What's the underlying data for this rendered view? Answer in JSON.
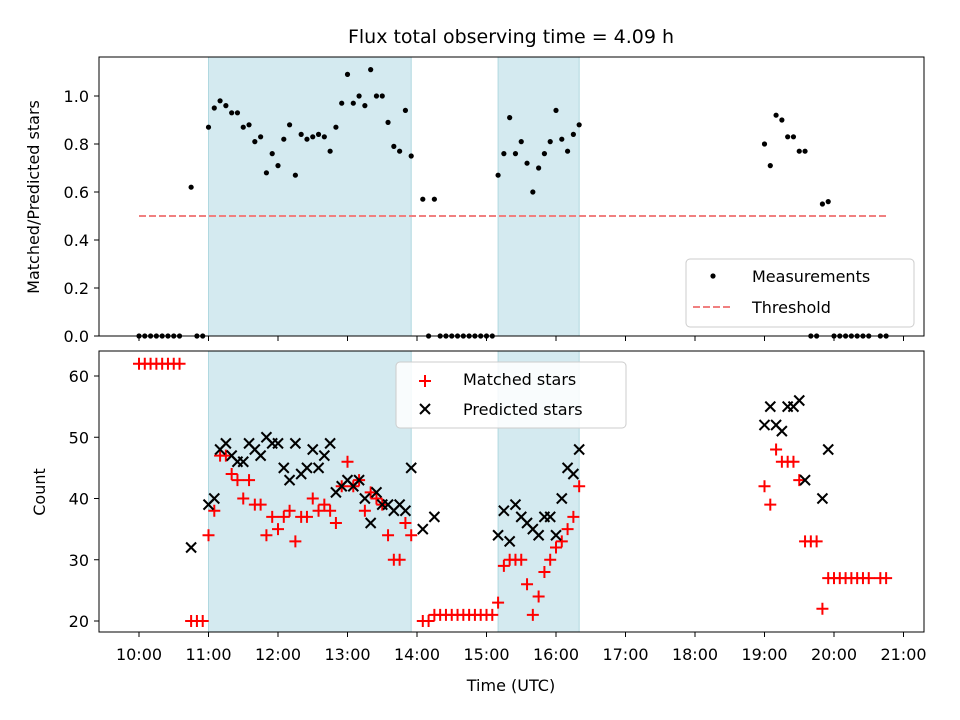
{
  "chart_data": [
    {
      "type": "scatter",
      "title": "Flux total observing time = 4.09 h",
      "xlabel": "",
      "ylabel": "Matched/Predicted stars",
      "xlim": [
        "09:50",
        "21:15"
      ],
      "ylim": [
        0,
        1.17
      ],
      "yticks": [
        "0.0",
        "0.2",
        "0.4",
        "0.6",
        "0.8",
        "1.0"
      ],
      "grid": false,
      "legend_position": "lower-right",
      "shaded_intervals": [
        [
          "11:00",
          "13:55"
        ],
        [
          "15:10",
          "16:20"
        ]
      ],
      "shade_color": "#d4eaf0",
      "series": [
        {
          "name": "Measurements",
          "marker": "dot",
          "color": "#000000",
          "points": [
            [
              "10:00",
              0
            ],
            [
              "10:05",
              0
            ],
            [
              "10:10",
              0
            ],
            [
              "10:15",
              0
            ],
            [
              "10:20",
              0
            ],
            [
              "10:25",
              0
            ],
            [
              "10:30",
              0
            ],
            [
              "10:35",
              0
            ],
            [
              "10:45",
              0.62
            ],
            [
              "10:50",
              0
            ],
            [
              "10:55",
              0
            ],
            [
              "11:00",
              0.87
            ],
            [
              "11:05",
              0.95
            ],
            [
              "11:10",
              0.98
            ],
            [
              "11:15",
              0.96
            ],
            [
              "11:20",
              0.93
            ],
            [
              "11:25",
              0.93
            ],
            [
              "11:30",
              0.87
            ],
            [
              "11:35",
              0.88
            ],
            [
              "11:40",
              0.81
            ],
            [
              "11:45",
              0.83
            ],
            [
              "11:50",
              0.68
            ],
            [
              "11:55",
              0.76
            ],
            [
              "12:00",
              0.71
            ],
            [
              "12:05",
              0.82
            ],
            [
              "12:10",
              0.88
            ],
            [
              "12:15",
              0.67
            ],
            [
              "12:20",
              0.84
            ],
            [
              "12:25",
              0.82
            ],
            [
              "12:30",
              0.83
            ],
            [
              "12:35",
              0.84
            ],
            [
              "12:40",
              0.83
            ],
            [
              "12:45",
              0.77
            ],
            [
              "12:50",
              0.87
            ],
            [
              "12:55",
              0.97
            ],
            [
              "13:00",
              1.09
            ],
            [
              "13:05",
              0.97
            ],
            [
              "13:10",
              1.0
            ],
            [
              "13:15",
              0.96
            ],
            [
              "13:20",
              1.11
            ],
            [
              "13:25",
              1.0
            ],
            [
              "13:30",
              1.0
            ],
            [
              "13:35",
              0.89
            ],
            [
              "13:40",
              0.79
            ],
            [
              "13:45",
              0.77
            ],
            [
              "13:50",
              0.94
            ],
            [
              "13:55",
              0.75
            ],
            [
              "14:05",
              0.57
            ],
            [
              "14:10",
              0
            ],
            [
              "14:15",
              0.57
            ],
            [
              "14:20",
              0
            ],
            [
              "14:25",
              0
            ],
            [
              "14:30",
              0
            ],
            [
              "14:35",
              0
            ],
            [
              "14:40",
              0
            ],
            [
              "14:45",
              0
            ],
            [
              "14:50",
              0
            ],
            [
              "14:55",
              0
            ],
            [
              "15:00",
              0
            ],
            [
              "15:05",
              0
            ],
            [
              "15:10",
              0.67
            ],
            [
              "15:15",
              0.76
            ],
            [
              "15:20",
              0.91
            ],
            [
              "15:25",
              0.76
            ],
            [
              "15:30",
              0.81
            ],
            [
              "15:35",
              0.72
            ],
            [
              "15:40",
              0.6
            ],
            [
              "15:45",
              0.7
            ],
            [
              "15:50",
              0.76
            ],
            [
              "15:55",
              0.81
            ],
            [
              "16:00",
              0.94
            ],
            [
              "16:05",
              0.82
            ],
            [
              "16:10",
              0.77
            ],
            [
              "16:15",
              0.84
            ],
            [
              "16:20",
              0.88
            ],
            [
              "19:00",
              0.8
            ],
            [
              "19:05",
              0.71
            ],
            [
              "19:10",
              0.92
            ],
            [
              "19:15",
              0.9
            ],
            [
              "19:20",
              0.83
            ],
            [
              "19:25",
              0.83
            ],
            [
              "19:30",
              0.77
            ],
            [
              "19:35",
              0.77
            ],
            [
              "19:40",
              0
            ],
            [
              "19:45",
              0
            ],
            [
              "19:50",
              0.55
            ],
            [
              "19:55",
              0.56
            ],
            [
              "20:00",
              0
            ],
            [
              "20:05",
              0
            ],
            [
              "20:10",
              0
            ],
            [
              "20:15",
              0
            ],
            [
              "20:20",
              0
            ],
            [
              "20:25",
              0
            ],
            [
              "20:30",
              0
            ],
            [
              "20:40",
              0
            ],
            [
              "20:45",
              0
            ]
          ]
        },
        {
          "name": "Threshold",
          "marker": "dashed-line",
          "color": "#f08080",
          "points": [
            [
              "10:00",
              0.5
            ],
            [
              "20:45",
              0.5
            ]
          ]
        }
      ]
    },
    {
      "type": "scatter",
      "title": "",
      "xlabel": "Time (UTC)",
      "ylabel": "Count",
      "xlim": [
        "09:50",
        "21:15"
      ],
      "ylim": [
        18,
        64
      ],
      "yticks": [
        "20",
        "30",
        "40",
        "50",
        "60"
      ],
      "xticks": [
        "10:00",
        "11:00",
        "12:00",
        "13:00",
        "14:00",
        "15:00",
        "16:00",
        "17:00",
        "18:00",
        "19:00",
        "20:00",
        "21:00"
      ],
      "grid": false,
      "legend_position": "upper-center",
      "shaded_intervals": [
        [
          "11:00",
          "13:55"
        ],
        [
          "15:10",
          "16:20"
        ]
      ],
      "shade_color": "#d4eaf0",
      "series": [
        {
          "name": "Matched stars",
          "marker": "plus",
          "color": "#ff0000",
          "points": [
            [
              "10:00",
              62
            ],
            [
              "10:05",
              62
            ],
            [
              "10:10",
              62
            ],
            [
              "10:15",
              62
            ],
            [
              "10:20",
              62
            ],
            [
              "10:25",
              62
            ],
            [
              "10:30",
              62
            ],
            [
              "10:35",
              62
            ],
            [
              "10:45",
              20
            ],
            [
              "10:50",
              20
            ],
            [
              "10:55",
              20
            ],
            [
              "11:00",
              34
            ],
            [
              "11:05",
              38
            ],
            [
              "11:10",
              47
            ],
            [
              "11:15",
              47
            ],
            [
              "11:20",
              44
            ],
            [
              "11:25",
              43
            ],
            [
              "11:30",
              40
            ],
            [
              "11:35",
              43
            ],
            [
              "11:40",
              39
            ],
            [
              "11:45",
              39
            ],
            [
              "11:50",
              34
            ],
            [
              "11:55",
              37
            ],
            [
              "12:00",
              35
            ],
            [
              "12:05",
              37
            ],
            [
              "12:10",
              38
            ],
            [
              "12:15",
              33
            ],
            [
              "12:20",
              37
            ],
            [
              "12:25",
              37
            ],
            [
              "12:30",
              40
            ],
            [
              "12:35",
              38
            ],
            [
              "12:40",
              39
            ],
            [
              "12:45",
              38
            ],
            [
              "12:50",
              36
            ],
            [
              "12:55",
              42
            ],
            [
              "13:00",
              46
            ],
            [
              "13:05",
              42
            ],
            [
              "13:10",
              43
            ],
            [
              "13:15",
              38
            ],
            [
              "13:20",
              41
            ],
            [
              "13:25",
              40
            ],
            [
              "13:30",
              39
            ],
            [
              "13:35",
              34
            ],
            [
              "13:40",
              30
            ],
            [
              "13:45",
              30
            ],
            [
              "13:50",
              36
            ],
            [
              "13:55",
              34
            ],
            [
              "14:05",
              20
            ],
            [
              "14:10",
              20
            ],
            [
              "14:15",
              21
            ],
            [
              "14:20",
              21
            ],
            [
              "14:25",
              21
            ],
            [
              "14:30",
              21
            ],
            [
              "14:35",
              21
            ],
            [
              "14:40",
              21
            ],
            [
              "14:45",
              21
            ],
            [
              "14:50",
              21
            ],
            [
              "14:55",
              21
            ],
            [
              "15:00",
              21
            ],
            [
              "15:05",
              21
            ],
            [
              "15:10",
              23
            ],
            [
              "15:15",
              29
            ],
            [
              "15:20",
              30
            ],
            [
              "15:25",
              30
            ],
            [
              "15:30",
              30
            ],
            [
              "15:35",
              26
            ],
            [
              "15:40",
              21
            ],
            [
              "15:45",
              24
            ],
            [
              "15:50",
              28
            ],
            [
              "15:55",
              30
            ],
            [
              "16:00",
              32
            ],
            [
              "16:05",
              33
            ],
            [
              "16:10",
              35
            ],
            [
              "16:15",
              37
            ],
            [
              "16:20",
              42
            ],
            [
              "19:00",
              42
            ],
            [
              "19:05",
              39
            ],
            [
              "19:10",
              48
            ],
            [
              "19:15",
              46
            ],
            [
              "19:20",
              46
            ],
            [
              "19:25",
              46
            ],
            [
              "19:30",
              43
            ],
            [
              "19:35",
              33
            ],
            [
              "19:40",
              33
            ],
            [
              "19:45",
              33
            ],
            [
              "19:50",
              22
            ],
            [
              "19:55",
              27
            ],
            [
              "20:00",
              27
            ],
            [
              "20:05",
              27
            ],
            [
              "20:10",
              27
            ],
            [
              "20:15",
              27
            ],
            [
              "20:20",
              27
            ],
            [
              "20:25",
              27
            ],
            [
              "20:30",
              27
            ],
            [
              "20:40",
              27
            ],
            [
              "20:45",
              27
            ]
          ]
        },
        {
          "name": "Predicted stars",
          "marker": "x",
          "color": "#000000",
          "points": [
            [
              "10:45",
              32
            ],
            [
              "11:00",
              39
            ],
            [
              "11:05",
              40
            ],
            [
              "11:10",
              48
            ],
            [
              "11:15",
              49
            ],
            [
              "11:20",
              47
            ],
            [
              "11:25",
              46
            ],
            [
              "11:30",
              46
            ],
            [
              "11:35",
              49
            ],
            [
              "11:40",
              48
            ],
            [
              "11:45",
              47
            ],
            [
              "11:50",
              50
            ],
            [
              "11:55",
              49
            ],
            [
              "12:00",
              49
            ],
            [
              "12:05",
              45
            ],
            [
              "12:10",
              43
            ],
            [
              "12:15",
              49
            ],
            [
              "12:20",
              44
            ],
            [
              "12:25",
              45
            ],
            [
              "12:30",
              48
            ],
            [
              "12:35",
              45
            ],
            [
              "12:40",
              47
            ],
            [
              "12:45",
              49
            ],
            [
              "12:50",
              41
            ],
            [
              "12:55",
              42
            ],
            [
              "13:00",
              43
            ],
            [
              "13:05",
              42
            ],
            [
              "13:10",
              43
            ],
            [
              "13:15",
              40
            ],
            [
              "13:20",
              36
            ],
            [
              "13:25",
              41
            ],
            [
              "13:30",
              39
            ],
            [
              "13:35",
              39
            ],
            [
              "13:40",
              38
            ],
            [
              "13:45",
              39
            ],
            [
              "13:50",
              38
            ],
            [
              "13:55",
              45
            ],
            [
              "14:05",
              35
            ],
            [
              "14:15",
              37
            ],
            [
              "15:10",
              34
            ],
            [
              "15:15",
              38
            ],
            [
              "15:20",
              33
            ],
            [
              "15:25",
              39
            ],
            [
              "15:30",
              37
            ],
            [
              "15:35",
              36
            ],
            [
              "15:40",
              35
            ],
            [
              "15:45",
              34
            ],
            [
              "15:50",
              37
            ],
            [
              "15:55",
              37
            ],
            [
              "16:00",
              34
            ],
            [
              "16:05",
              40
            ],
            [
              "16:10",
              45
            ],
            [
              "16:15",
              44
            ],
            [
              "16:20",
              48
            ],
            [
              "19:00",
              52
            ],
            [
              "19:05",
              55
            ],
            [
              "19:10",
              52
            ],
            [
              "19:15",
              51
            ],
            [
              "19:20",
              55
            ],
            [
              "19:25",
              55
            ],
            [
              "19:30",
              56
            ],
            [
              "19:35",
              43
            ],
            [
              "19:50",
              40
            ],
            [
              "19:55",
              48
            ]
          ]
        }
      ]
    }
  ]
}
